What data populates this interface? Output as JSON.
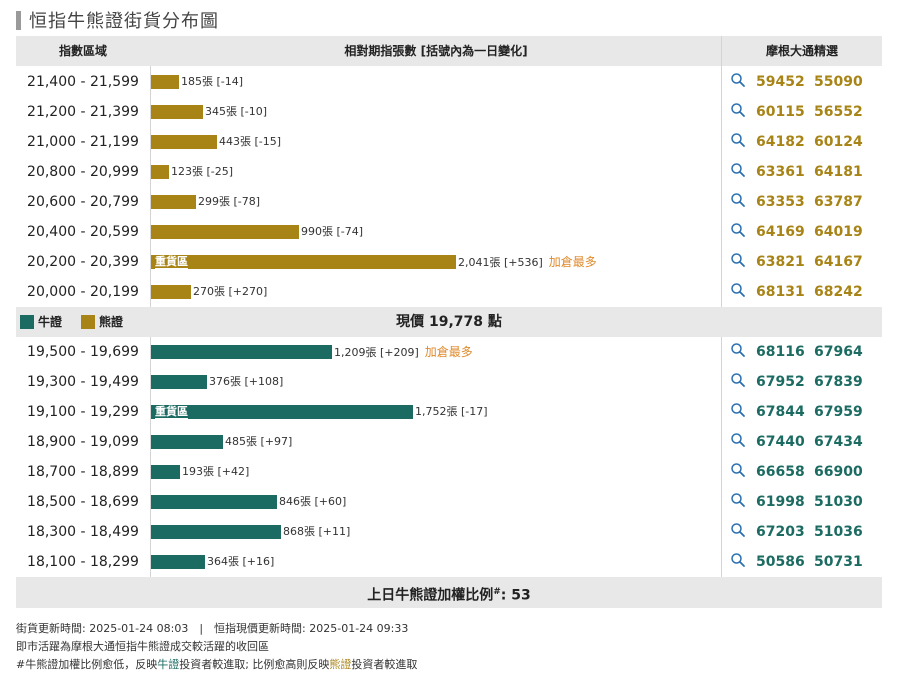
{
  "title": "恒指牛熊證街貨分布圖",
  "header": {
    "col_range": "指數區域",
    "col_volume": "相對期指張數 [括號內為一日變化]",
    "col_picks": "摩根大通精選"
  },
  "colors": {
    "bull": "#1c6b62",
    "bear": "#a88417",
    "note": "#e08a2c"
  },
  "legend": {
    "bull": "牛證",
    "bear": "熊證"
  },
  "middle": {
    "price_text": "現價 19,778 點"
  },
  "bottom": {
    "ratio_text": "上日牛熊證加權比例",
    "ratio_mark": "#",
    "ratio_value": ": 53"
  },
  "footer": {
    "line1": "街貨更新時間: 2025-01-24 08:03　|　恒指現價更新時間: 2025-01-24 09:33",
    "line2": "即市活躍為摩根大通恒指牛熊證成交較活躍的收回區",
    "line3_a": "#牛熊證加權比例愈低，反映",
    "line3_bull": "牛證",
    "line3_b": "投資者較進取; 比例愈高則反映",
    "line3_bear": "熊證",
    "line3_c": "投資者較進取"
  },
  "chart_data": {
    "type": "bar",
    "orientation": "horizontal",
    "title": "恒指牛熊證街貨分布圖",
    "scale_max": 2041,
    "bear_rows": [
      {
        "range": "21,400 - 21,599",
        "value": 185,
        "label": "185張 [-14]",
        "codes": [
          "59452",
          "55090"
        ]
      },
      {
        "range": "21,200 - 21,399",
        "value": 345,
        "label": "345張 [-10]",
        "codes": [
          "60115",
          "56552"
        ]
      },
      {
        "range": "21,000 - 21,199",
        "value": 443,
        "label": "443張 [-15]",
        "codes": [
          "64182",
          "60124"
        ]
      },
      {
        "range": "20,800 - 20,999",
        "value": 123,
        "label": "123張 [-25]",
        "codes": [
          "63361",
          "64181"
        ]
      },
      {
        "range": "20,600 - 20,799",
        "value": 299,
        "label": "299張 [-78]",
        "codes": [
          "63353",
          "63787"
        ]
      },
      {
        "range": "20,400 - 20,599",
        "value": 990,
        "label": "990張 [-74]",
        "codes": [
          "64169",
          "64019"
        ]
      },
      {
        "range": "20,200 - 20,399",
        "value": 2041,
        "label": "2,041張 [+536]",
        "note": "加倉最多",
        "inbar": "重貨區",
        "codes": [
          "63821",
          "64167"
        ]
      },
      {
        "range": "20,000 - 20,199",
        "value": 270,
        "label": "270張 [+270]",
        "codes": [
          "68131",
          "68242"
        ]
      }
    ],
    "bull_rows": [
      {
        "range": "19,500 - 19,699",
        "value": 1209,
        "label": "1,209張 [+209]",
        "note": "加倉最多",
        "codes": [
          "68116",
          "67964"
        ]
      },
      {
        "range": "19,300 - 19,499",
        "value": 376,
        "label": "376張 [+108]",
        "codes": [
          "67952",
          "67839"
        ]
      },
      {
        "range": "19,100 - 19,299",
        "value": 1752,
        "label": "1,752張 [-17]",
        "inbar": "重貨區",
        "codes": [
          "67844",
          "67959"
        ]
      },
      {
        "range": "18,900 - 19,099",
        "value": 485,
        "label": "485張 [+97]",
        "codes": [
          "67440",
          "67434"
        ]
      },
      {
        "range": "18,700 - 18,899",
        "value": 193,
        "label": "193張 [+42]",
        "codes": [
          "66658",
          "66900"
        ]
      },
      {
        "range": "18,500 - 18,699",
        "value": 846,
        "label": "846張 [+60]",
        "codes": [
          "61998",
          "51030"
        ]
      },
      {
        "range": "18,300 - 18,499",
        "value": 868,
        "label": "868張 [+11]",
        "codes": [
          "67203",
          "51036"
        ]
      },
      {
        "range": "18,100 - 18,299",
        "value": 364,
        "label": "364張 [+16]",
        "codes": [
          "50586",
          "50731"
        ]
      }
    ]
  }
}
